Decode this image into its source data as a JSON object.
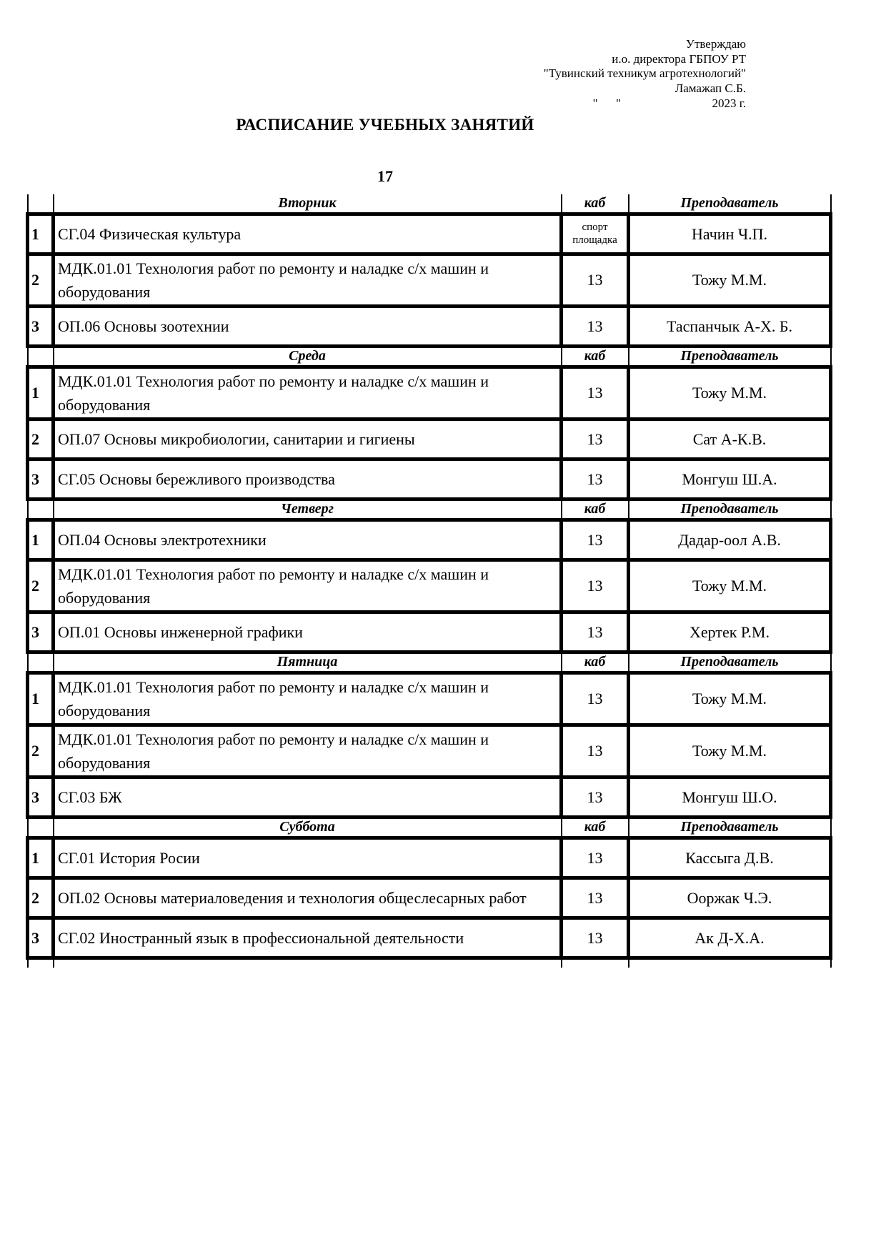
{
  "approval": {
    "lines": [
      "Утверждаю",
      "и.о. директора ГБПОУ РТ",
      "\"Тувинский техникум агротехнологий\"",
      "Ламажап С.Б.",
      "\"      \"                              2023 г."
    ]
  },
  "title": "РАСПИСАНИЕ УЧЕБНЫХ ЗАНЯТИЙ",
  "group": "17",
  "schedule": {
    "column_headers": {
      "cab": "каб",
      "teacher": "Преподаватель"
    },
    "days": [
      {
        "name": "Вторник",
        "lessons": [
          {
            "num": "1",
            "subject": "СГ.04 Физическая культура",
            "cab": "спорт площадка",
            "cab_small": true,
            "teacher": "Начин Ч.П."
          },
          {
            "num": "2",
            "subject": "МДК.01.01 Технология работ по ремонту и наладке с/х машин и оборудования",
            "cab": "13",
            "teacher": "Тожу М.М."
          },
          {
            "num": "3",
            "subject": "ОП.06 Основы зоотехнии",
            "cab": "13",
            "teacher": "Таспанчык А-Х. Б."
          }
        ]
      },
      {
        "name": "Среда",
        "lessons": [
          {
            "num": "1",
            "subject": "МДК.01.01 Технология работ по ремонту и наладке с/х машин и оборудования",
            "cab": "13",
            "teacher": "Тожу М.М."
          },
          {
            "num": "2",
            "subject": "ОП.07 Основы микробиологии, санитарии и гигиены",
            "cab": "13",
            "teacher": "Сат А-К.В."
          },
          {
            "num": "3",
            "subject": "СГ.05 Основы бережливого производства",
            "cab": "13",
            "teacher": "Монгуш Ш.А."
          }
        ]
      },
      {
        "name": "Четверг",
        "lessons": [
          {
            "num": "1",
            "subject": "ОП.04 Основы электротехники",
            "cab": "13",
            "teacher": "Дадар-оол А.В."
          },
          {
            "num": "2",
            "subject": "МДК.01.01 Технология работ по ремонту и наладке с/х машин и оборудования",
            "cab": "13",
            "teacher": "Тожу М.М."
          },
          {
            "num": "3",
            "subject": "ОП.01 Основы инженерной графики",
            "cab": "13",
            "teacher": "Хертек Р.М."
          }
        ]
      },
      {
        "name": "Пятница",
        "lessons": [
          {
            "num": "1",
            "subject": "МДК.01.01 Технология работ по ремонту и наладке с/х машин и оборудования",
            "cab": "13",
            "teacher": "Тожу М.М."
          },
          {
            "num": "2",
            "subject": "МДК.01.01 Технология работ по ремонту и наладке с/х машин и оборудования",
            "cab": "13",
            "teacher": "Тожу М.М."
          },
          {
            "num": "3",
            "subject": "СГ.03 БЖ",
            "cab": "13",
            "teacher": "Монгуш Ш.О."
          }
        ]
      },
      {
        "name": "Суббота",
        "lessons": [
          {
            "num": "1",
            "subject": "СГ.01 История Росии",
            "cab": "13",
            "teacher": "Кассыга Д.В."
          },
          {
            "num": "2",
            "subject": "ОП.02 Основы материаловедения и технология общеслесарных работ",
            "cab": "13",
            "teacher": "Ооржак Ч.Э."
          },
          {
            "num": "3",
            "subject": "СГ.02 Иностранный язык в профессиональной деятельности",
            "cab": "13",
            "teacher": "Ак Д-Х.А."
          }
        ]
      }
    ]
  }
}
